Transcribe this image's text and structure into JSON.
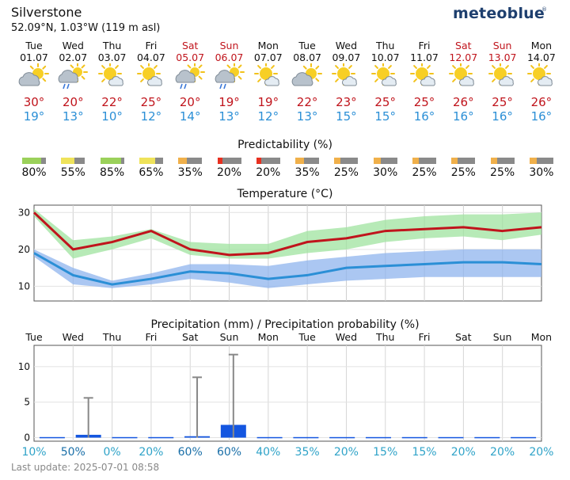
{
  "location": {
    "name": "Silverstone",
    "coords": "52.09°N, 1.03°W (119 m asl)"
  },
  "brand": {
    "name": "meteoblue",
    "mark": "®"
  },
  "days": [
    {
      "dow": "Tue",
      "date": "01.07",
      "weekend": false,
      "icon": "cloudy-sun-icon",
      "tmax": "30°",
      "tmin": "19°",
      "pred": "80%",
      "pred_val": 80,
      "pred_color": "#9bd15a",
      "prob": "10%",
      "precip": 0.0,
      "precip_max": 0.0
    },
    {
      "dow": "Wed",
      "date": "02.07",
      "weekend": false,
      "icon": "rain-shower-sun-icon",
      "tmax": "20°",
      "tmin": "13°",
      "pred": "55%",
      "pred_val": 55,
      "pred_color": "#efe35a",
      "prob": "50%",
      "precip": 0.4,
      "precip_max": 5.6
    },
    {
      "dow": "Thu",
      "date": "03.07",
      "weekend": false,
      "icon": "sun-cloud-icon",
      "tmax": "22°",
      "tmin": "10°",
      "pred": "85%",
      "pred_val": 85,
      "pred_color": "#9bd15a",
      "prob": "0%",
      "precip": 0.0,
      "precip_max": 0.0
    },
    {
      "dow": "Fri",
      "date": "04.07",
      "weekend": false,
      "icon": "sun-cloud-icon",
      "tmax": "25°",
      "tmin": "12°",
      "pred": "65%",
      "pred_val": 65,
      "pred_color": "#efe35a",
      "prob": "20%",
      "precip": 0.0,
      "precip_max": 0.0
    },
    {
      "dow": "Sat",
      "date": "05.07",
      "weekend": true,
      "icon": "rain-shower-sun-icon",
      "tmax": "20°",
      "tmin": "14°",
      "pred": "35%",
      "pred_val": 35,
      "pred_color": "#f0b04a",
      "prob": "60%",
      "precip": 0.2,
      "precip_max": 8.5
    },
    {
      "dow": "Sun",
      "date": "06.07",
      "weekend": true,
      "icon": "rain-shower-sun-icon",
      "tmax": "19°",
      "tmin": "13°",
      "pred": "20%",
      "pred_val": 20,
      "pred_color": "#e83020",
      "prob": "60%",
      "precip": 1.8,
      "precip_max": 11.7
    },
    {
      "dow": "Mon",
      "date": "07.07",
      "weekend": false,
      "icon": "sun-cloud-icon",
      "tmax": "19°",
      "tmin": "12°",
      "pred": "20%",
      "pred_val": 20,
      "pred_color": "#e83020",
      "prob": "40%",
      "precip": 0.0,
      "precip_max": 0.0
    },
    {
      "dow": "Tue",
      "date": "08.07",
      "weekend": false,
      "icon": "cloudy-sun-icon",
      "tmax": "22°",
      "tmin": "13°",
      "pred": "35%",
      "pred_val": 35,
      "pred_color": "#f0b04a",
      "prob": "35%",
      "precip": 0.0,
      "precip_max": 0.0
    },
    {
      "dow": "Wed",
      "date": "09.07",
      "weekend": false,
      "icon": "sun-cloud-icon",
      "tmax": "23°",
      "tmin": "15°",
      "pred": "25%",
      "pred_val": 25,
      "pred_color": "#f0b04a",
      "prob": "20%",
      "precip": 0.0,
      "precip_max": 0.0
    },
    {
      "dow": "Thu",
      "date": "10.07",
      "weekend": false,
      "icon": "sun-cloud-icon",
      "tmax": "25°",
      "tmin": "15°",
      "pred": "30%",
      "pred_val": 30,
      "pred_color": "#f0b04a",
      "prob": "15%",
      "precip": 0.0,
      "precip_max": 0.0
    },
    {
      "dow": "Fri",
      "date": "11.07",
      "weekend": false,
      "icon": "sun-cloud-icon",
      "tmax": "25°",
      "tmin": "16°",
      "pred": "25%",
      "pred_val": 25,
      "pred_color": "#f0b04a",
      "prob": "15%",
      "precip": 0.0,
      "precip_max": 0.0
    },
    {
      "dow": "Sat",
      "date": "12.07",
      "weekend": true,
      "icon": "sun-cloud-icon",
      "tmax": "26°",
      "tmin": "16°",
      "pred": "25%",
      "pred_val": 25,
      "pred_color": "#f0b04a",
      "prob": "20%",
      "precip": 0.0,
      "precip_max": 0.0
    },
    {
      "dow": "Sun",
      "date": "13.07",
      "weekend": true,
      "icon": "sun-cloud-icon",
      "tmax": "25°",
      "tmin": "16°",
      "pred": "25%",
      "pred_val": 25,
      "pred_color": "#f0b04a",
      "prob": "20%",
      "precip": 0.0,
      "precip_max": 0.0
    },
    {
      "dow": "Mon",
      "date": "14.07",
      "weekend": false,
      "icon": "sun-cloud-icon",
      "tmax": "26°",
      "tmin": "16°",
      "pred": "30%",
      "pred_val": 30,
      "pred_color": "#f0b04a",
      "prob": "20%",
      "precip": 0.0,
      "precip_max": 0.0
    }
  ],
  "sections": {
    "predictability": "Predictability (%)",
    "temperature": "Temperature (°C)",
    "precipitation": "Precipitation (mm) / Precipitation probability (%)"
  },
  "footer": {
    "last_update": "Last update: 2025-07-01 08:58"
  },
  "colors": {
    "tmax": "#c0141c",
    "tmin": "#2b8fd6",
    "band_max": "#9fe39f",
    "band_min": "#8fb4ee",
    "precip": "#1456e0",
    "prob": "#2fa3c8"
  },
  "chart_data": [
    {
      "type": "line",
      "title": "Temperature (°C)",
      "x": [
        "01.07",
        "02.07",
        "03.07",
        "04.07",
        "05.07",
        "06.07",
        "07.07",
        "08.07",
        "09.07",
        "10.07",
        "11.07",
        "12.07",
        "13.07",
        "14.07"
      ],
      "ylim": [
        6,
        32
      ],
      "yticks": [
        "10",
        "20",
        "30"
      ],
      "series": [
        {
          "values": [
            30,
            20,
            22,
            25,
            20,
            18.5,
            19,
            22,
            23,
            25,
            25.5,
            26,
            25,
            26
          ],
          "band_low": [
            29,
            17.5,
            20,
            23,
            18.5,
            17.5,
            17.5,
            19,
            20,
            22,
            23,
            23.5,
            22.5,
            24
          ],
          "band_high": [
            31,
            22.5,
            23.5,
            25.5,
            22,
            21.5,
            21.5,
            25,
            26,
            28,
            29,
            29.5,
            29.5,
            30
          ]
        },
        {
          "values": [
            19,
            13,
            10.5,
            12,
            14,
            13.5,
            12,
            13,
            15,
            15.5,
            16,
            16.5,
            16.5,
            16
          ],
          "band_low": [
            18,
            10.5,
            9.5,
            10.5,
            12,
            11,
            9.5,
            10.5,
            11.5,
            12,
            12.5,
            12.5,
            12.5,
            12.5
          ],
          "band_high": [
            20,
            15,
            11.5,
            13.5,
            16,
            16,
            15.5,
            17,
            18,
            19,
            19.5,
            20,
            20,
            20
          ]
        }
      ]
    },
    {
      "type": "bar",
      "title": "Precipitation (mm) / Precipitation probability (%)",
      "categories": [
        "Tue",
        "Wed",
        "Thu",
        "Fri",
        "Sat",
        "Sun",
        "Mon",
        "Tue",
        "Wed",
        "Thu",
        "Fri",
        "Sat",
        "Sun",
        "Mon"
      ],
      "ylim": [
        -0.5,
        13
      ],
      "yticks": [
        "0",
        "5",
        "10"
      ],
      "values": [
        0,
        0.4,
        0,
        0,
        0.2,
        1.8,
        0,
        0,
        0,
        0,
        0,
        0,
        0,
        0
      ],
      "error_max": [
        0,
        5.6,
        0,
        0,
        8.5,
        11.7,
        0,
        0,
        0,
        0,
        0,
        0,
        0,
        0
      ]
    }
  ]
}
